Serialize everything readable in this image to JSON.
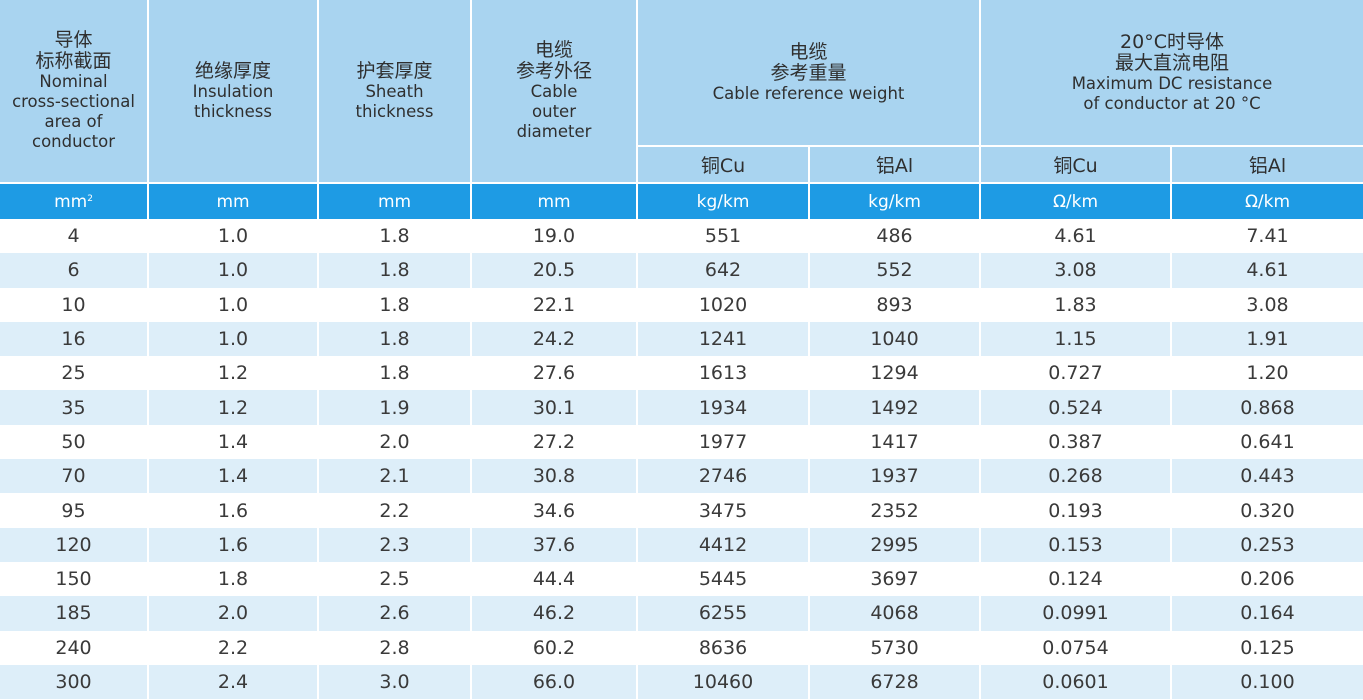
{
  "header": {
    "area": {
      "zh1": "导体",
      "zh2": "标称截面",
      "en1": "Nominal",
      "en2": "cross-sectional",
      "en3": "area of",
      "en4": "conductor"
    },
    "insulation": {
      "zh": "绝缘厚度",
      "en1": "Insulation",
      "en2": "thickness"
    },
    "sheath": {
      "zh": "护套厚度",
      "en1": "Sheath",
      "en2": "thickness"
    },
    "diameter": {
      "zh1": "电缆",
      "zh2": "参考外径",
      "en1": "Cable",
      "en2": "outer",
      "en3": "diameter"
    },
    "weight": {
      "zh1": "电缆",
      "zh2": "参考重量",
      "en": "Cable reference weight"
    },
    "resistance": {
      "zh1": "20°C时导体",
      "zh2": "最大直流电阻",
      "en1": "Maximum DC resistance",
      "en2": "of conductor at 20 °C"
    },
    "weight_cu": "铜Cu",
    "weight_al": "铝Al",
    "res_cu": "铜Cu",
    "res_al": "铝Al"
  },
  "units": {
    "area": "mm",
    "area_sup": "2",
    "insulation": "mm",
    "sheath": "mm",
    "diameter": "mm",
    "weight_cu": "kg/km",
    "weight_al": "kg/km",
    "res_cu": "Ω/km",
    "res_al": "Ω/km"
  },
  "rows": [
    [
      "4",
      "1.0",
      "1.8",
      "19.0",
      "551",
      "486",
      "4.61",
      "7.41"
    ],
    [
      "6",
      "1.0",
      "1.8",
      "20.5",
      "642",
      "552",
      "3.08",
      "4.61"
    ],
    [
      "10",
      "1.0",
      "1.8",
      "22.1",
      "1020",
      "893",
      "1.83",
      "3.08"
    ],
    [
      "16",
      "1.0",
      "1.8",
      "24.2",
      "1241",
      "1040",
      "1.15",
      "1.91"
    ],
    [
      "25",
      "1.2",
      "1.8",
      "27.6",
      "1613",
      "1294",
      "0.727",
      "1.20"
    ],
    [
      "35",
      "1.2",
      "1.9",
      "30.1",
      "1934",
      "1492",
      "0.524",
      "0.868"
    ],
    [
      "50",
      "1.4",
      "2.0",
      "27.2",
      "1977",
      "1417",
      "0.387",
      "0.641"
    ],
    [
      "70",
      "1.4",
      "2.1",
      "30.8",
      "2746",
      "1937",
      "0.268",
      "0.443"
    ],
    [
      "95",
      "1.6",
      "2.2",
      "34.6",
      "3475",
      "2352",
      "0.193",
      "0.320"
    ],
    [
      "120",
      "1.6",
      "2.3",
      "37.6",
      "4412",
      "2995",
      "0.153",
      "0.253"
    ],
    [
      "150",
      "1.8",
      "2.5",
      "44.4",
      "5445",
      "3697",
      "0.124",
      "0.206"
    ],
    [
      "185",
      "2.0",
      "2.6",
      "46.2",
      "6255",
      "4068",
      "0.0991",
      "0.164"
    ],
    [
      "240",
      "2.2",
      "2.8",
      "60.2",
      "8636",
      "5730",
      "0.0754",
      "0.125"
    ],
    [
      "300",
      "2.4",
      "3.0",
      "66.0",
      "10460",
      "6728",
      "0.0601",
      "0.100"
    ]
  ],
  "colors": {
    "header_bg": "#a9d4f0",
    "unit_bg": "#1e9be4",
    "stripe_bg": "#ddeef9"
  }
}
